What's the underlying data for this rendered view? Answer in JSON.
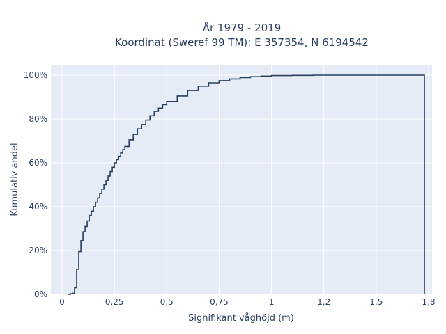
{
  "chart_data": {
    "type": "line",
    "subtype": "empirical-cdf-step",
    "title": "År 1979 - 2019",
    "subtitle": "Koordinat (Sweref 99 TM): E 357354, N 6194542",
    "xlabel": "Signifikant våghöjd (m)",
    "ylabel": "Kumulativ andel",
    "xlim": [
      -0.05,
      1.8
    ],
    "ylim": [
      0,
      1.0
    ],
    "x_ticks": [
      0,
      0.25,
      0.5,
      0.75,
      1,
      1.25,
      1.5,
      1.75
    ],
    "x_tick_labels": [
      "0",
      "0,25",
      "0,5",
      "0,75",
      "1",
      "1,2",
      "1,5",
      "1,8"
    ],
    "y_ticks": [
      0,
      0.2,
      0.4,
      0.6,
      0.8,
      1.0
    ],
    "y_tick_labels": [
      "0%",
      "20%",
      "40%",
      "60%",
      "80%",
      "100%"
    ],
    "grid": true,
    "line_color": "#2a3f5f",
    "background_color": "#e5ecf6",
    "series": [
      {
        "x": [
          0.03,
          0.04,
          0.05,
          0.06,
          0.07,
          0.08,
          0.09,
          0.1,
          0.11,
          0.12,
          0.13,
          0.14,
          0.15,
          0.16,
          0.17,
          0.18,
          0.19,
          0.2,
          0.21,
          0.22,
          0.23,
          0.24,
          0.25,
          0.26,
          0.27,
          0.28,
          0.29,
          0.3,
          0.32,
          0.34,
          0.36,
          0.38,
          0.4,
          0.42,
          0.44,
          0.46,
          0.48,
          0.5,
          0.55,
          0.6,
          0.65,
          0.7,
          0.75,
          0.8,
          0.85,
          0.9,
          0.95,
          1.0,
          1.1,
          1.2,
          1.3,
          1.73
        ],
        "y": [
          0.0,
          0.003,
          0.005,
          0.03,
          0.115,
          0.195,
          0.245,
          0.285,
          0.31,
          0.335,
          0.36,
          0.38,
          0.4,
          0.42,
          0.44,
          0.46,
          0.48,
          0.5,
          0.52,
          0.54,
          0.56,
          0.58,
          0.6,
          0.615,
          0.63,
          0.645,
          0.66,
          0.675,
          0.705,
          0.73,
          0.755,
          0.775,
          0.795,
          0.815,
          0.835,
          0.85,
          0.865,
          0.88,
          0.905,
          0.93,
          0.95,
          0.965,
          0.975,
          0.983,
          0.989,
          0.993,
          0.996,
          0.998,
          0.999,
          1.0,
          1.0,
          1.0
        ]
      }
    ]
  }
}
